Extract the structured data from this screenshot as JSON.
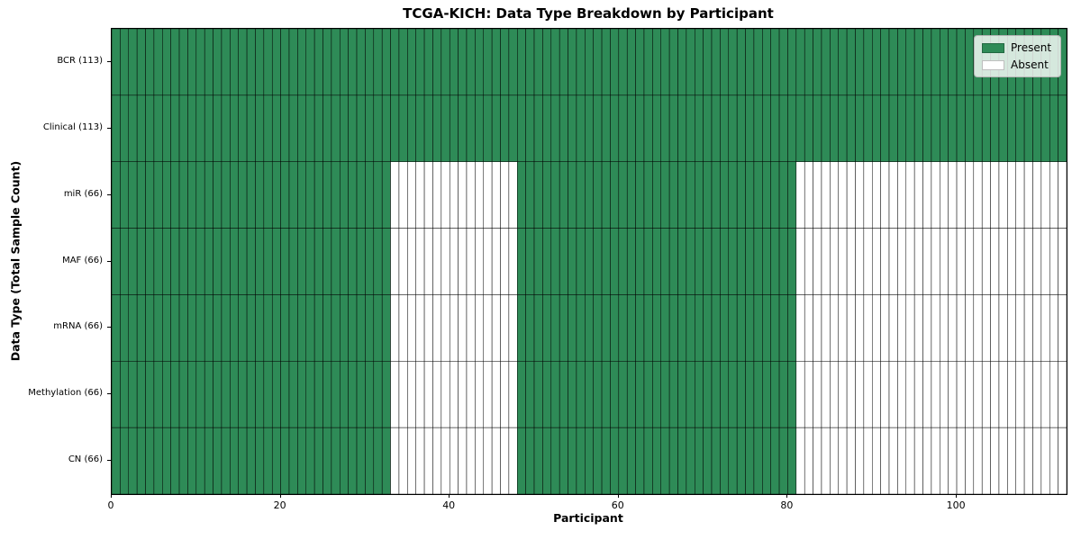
{
  "chart_data": {
    "type": "heatmap",
    "title": "TCGA-KICH: Data Type Breakdown by Participant",
    "xlabel": "Participant",
    "ylabel": "Data Type (Total Sample Count)",
    "x_range": [
      0,
      113
    ],
    "x_ticks": [
      0,
      20,
      40,
      60,
      80,
      100
    ],
    "n_participants": 113,
    "grid": "per-cell-borders",
    "legend_position": "upper-right",
    "legend_items": [
      {
        "label": "Present",
        "color": "#2e8b57"
      },
      {
        "label": "Absent",
        "color": "#ffffff"
      }
    ],
    "colors": {
      "present": "#2e8b57",
      "absent": "#ffffff",
      "cell_edge": "#000000",
      "background": "#ffffff"
    },
    "rows": [
      {
        "label": "BCR (113)",
        "data_type": "BCR",
        "total_sample_count": 113,
        "present_participant_ranges": [
          [
            0,
            113
          ]
        ]
      },
      {
        "label": "Clinical (113)",
        "data_type": "Clinical",
        "total_sample_count": 113,
        "present_participant_ranges": [
          [
            0,
            113
          ]
        ]
      },
      {
        "label": "miR (66)",
        "data_type": "miR",
        "total_sample_count": 66,
        "present_participant_ranges": [
          [
            0,
            33
          ],
          [
            48,
            81
          ]
        ]
      },
      {
        "label": "MAF (66)",
        "data_type": "MAF",
        "total_sample_count": 66,
        "present_participant_ranges": [
          [
            0,
            33
          ],
          [
            48,
            81
          ]
        ]
      },
      {
        "label": "mRNA (66)",
        "data_type": "mRNA",
        "total_sample_count": 66,
        "present_participant_ranges": [
          [
            0,
            33
          ],
          [
            48,
            81
          ]
        ]
      },
      {
        "label": "Methylation (66)",
        "data_type": "Methylation",
        "total_sample_count": 66,
        "present_participant_ranges": [
          [
            0,
            33
          ],
          [
            48,
            81
          ]
        ]
      },
      {
        "label": "CN (66)",
        "data_type": "CN",
        "total_sample_count": 66,
        "present_participant_ranges": [
          [
            0,
            33
          ],
          [
            48,
            81
          ]
        ]
      }
    ]
  }
}
